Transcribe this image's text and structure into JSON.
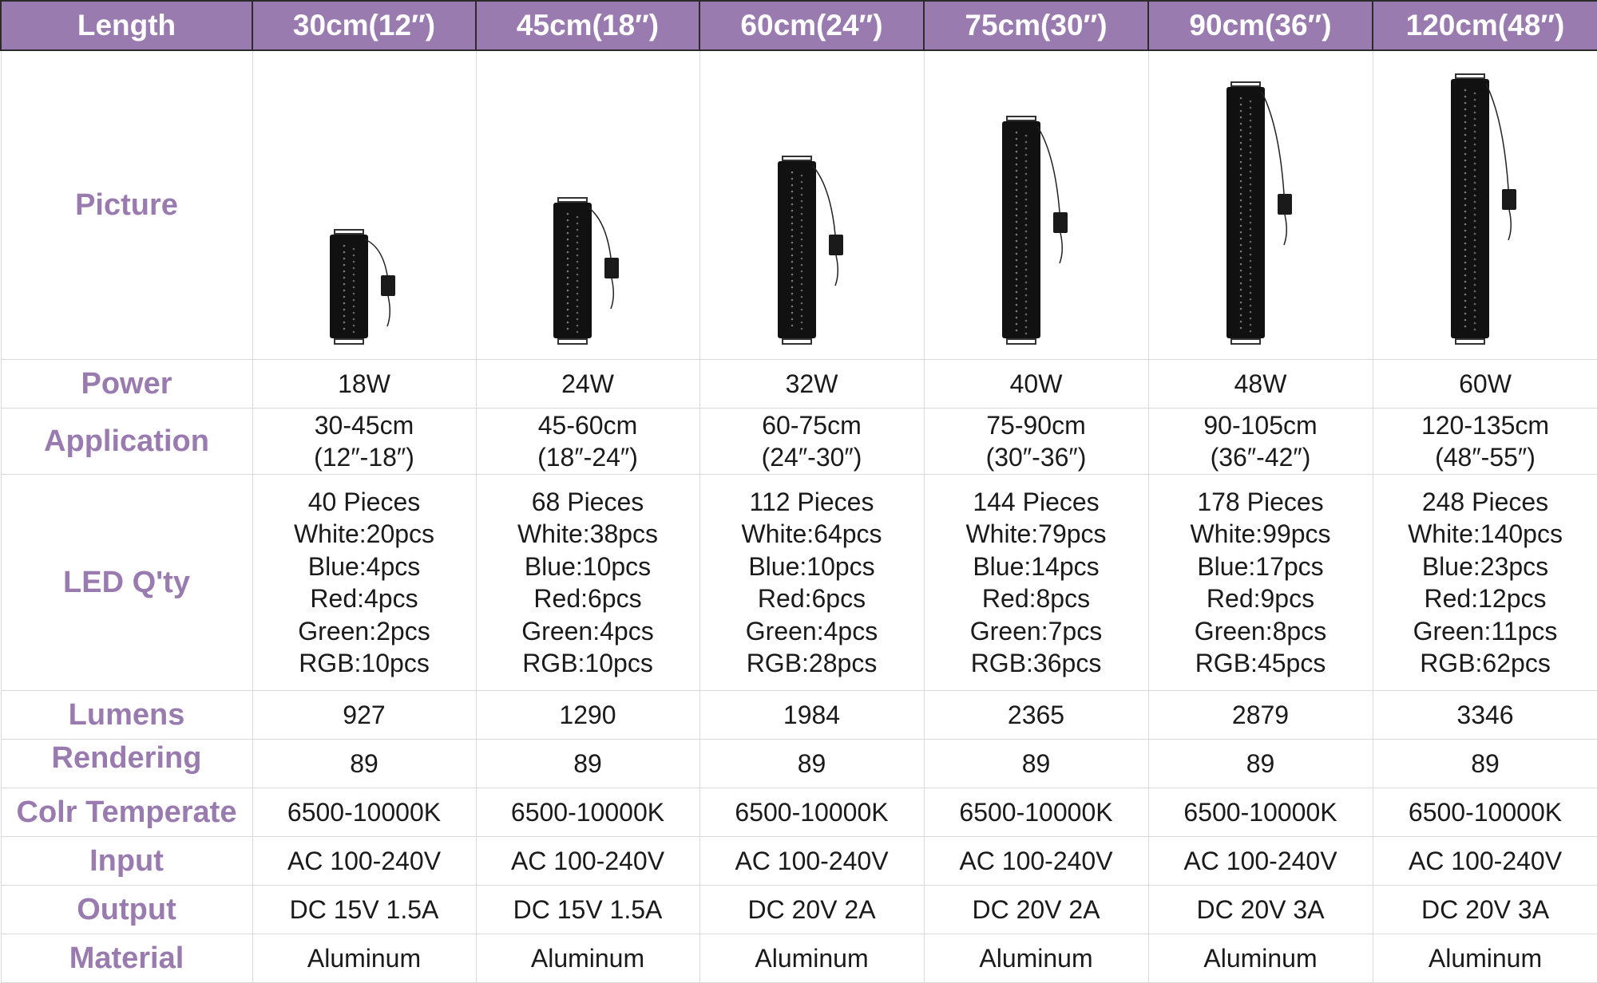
{
  "header": {
    "label": "Length",
    "columns": [
      "30cm(12″)",
      "45cm(18″)",
      "60cm(24″)",
      "75cm(30″)",
      "90cm(36″)",
      "120cm(48″)"
    ]
  },
  "colors": {
    "header_bg": "#9a7bb0",
    "label_text": "#9a7bb0",
    "body_text": "#1a1a1a"
  },
  "rows": {
    "picture": {
      "label": "Picture"
    },
    "power": {
      "label": "Power",
      "values": [
        "18W",
        "24W",
        "32W",
        "40W",
        "48W",
        "60W"
      ]
    },
    "application": {
      "label": "Application",
      "values": [
        [
          "30-45cm",
          "(12″-18″)"
        ],
        [
          "45-60cm",
          "(18″-24″)"
        ],
        [
          "60-75cm",
          "(24″-30″)"
        ],
        [
          "75-90cm",
          "(30″-36″)"
        ],
        [
          "90-105cm",
          "(36″-42″)"
        ],
        [
          "120-135cm",
          "(48″-55″)"
        ]
      ]
    },
    "led": {
      "label": "LED Q'ty",
      "values": [
        [
          "40 Pieces",
          "White:20pcs",
          "Blue:4pcs",
          "Red:4pcs",
          "Green:2pcs",
          "RGB:10pcs"
        ],
        [
          "68 Pieces",
          "White:38pcs",
          "Blue:10pcs",
          "Red:6pcs",
          "Green:4pcs",
          "RGB:10pcs"
        ],
        [
          "112 Pieces",
          "White:64pcs",
          "Blue:10pcs",
          "Red:6pcs",
          "Green:4pcs",
          "RGB:28pcs"
        ],
        [
          "144 Pieces",
          "White:79pcs",
          "Blue:14pcs",
          "Red:8pcs",
          "Green:7pcs",
          "RGB:36pcs"
        ],
        [
          "178 Pieces",
          "White:99pcs",
          "Blue:17pcs",
          "Red:9pcs",
          "Green:8pcs",
          "RGB:45pcs"
        ],
        [
          "248 Pieces",
          "White:140pcs",
          "Blue:23pcs",
          "Red:12pcs",
          "Green:11pcs",
          "RGB:62pcs"
        ]
      ]
    },
    "lumens": {
      "label": "Lumens",
      "values": [
        "927",
        "1290",
        "1984",
        "2365",
        "2879",
        "3346"
      ]
    },
    "rendering": {
      "label": "Rendering",
      "values": [
        "89",
        "89",
        "89",
        "89",
        "89",
        "89"
      ]
    },
    "temp": {
      "label": "Colr Temperate",
      "values": [
        "6500-10000K",
        "6500-10000K",
        "6500-10000K",
        "6500-10000K",
        "6500-10000K",
        "6500-10000K"
      ]
    },
    "input": {
      "label": "Input",
      "values": [
        "AC 100-240V",
        "AC 100-240V",
        "AC 100-240V",
        "AC 100-240V",
        "AC 100-240V",
        "AC 100-240V"
      ]
    },
    "output": {
      "label": "Output",
      "values": [
        "DC 15V 1.5A",
        "DC 15V 1.5A",
        "DC 20V 2A",
        "DC 20V 2A",
        "DC 20V 3A",
        "DC 20V 3A"
      ]
    },
    "material": {
      "label": "Material",
      "values": [
        "Aluminum",
        "Aluminum",
        "Aluminum",
        "Aluminum",
        "Aluminum",
        "Aluminum"
      ]
    }
  }
}
